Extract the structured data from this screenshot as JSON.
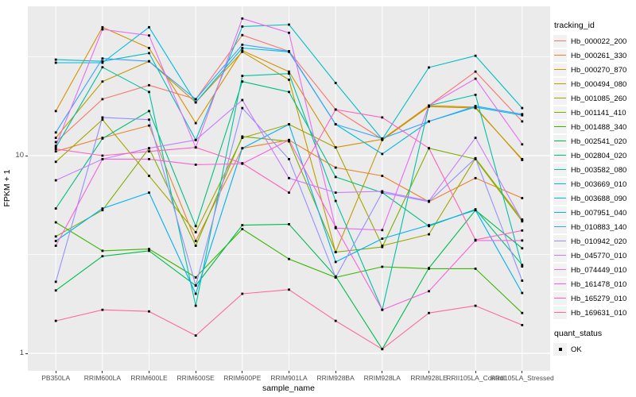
{
  "y_axis": {
    "title": "FPKM + 1",
    "ticks": [
      "10",
      "1"
    ]
  },
  "x_axis": {
    "title": "sample_name",
    "categories": [
      "PB350LA",
      "RRIM600LA",
      "RRIM600LE",
      "RRIM600SE",
      "RRIM600PE",
      "RRIM901LA",
      "RRIM928BA",
      "RRIM928LA",
      "RRIM928LE",
      "RRII105LA_Control",
      "RRII105LA_Stressed"
    ]
  },
  "legend": {
    "tracking_title": "tracking_id",
    "quant_title": "quant_status",
    "quant_label": "OK"
  },
  "chart_data": {
    "type": "line",
    "title": "",
    "xlabel": "sample_name",
    "ylabel": "FPKM + 1",
    "yscale": "log10",
    "ylim": [
      0.82,
      57
    ],
    "yticks": [
      1,
      10
    ],
    "y_major": [
      10,
      1
    ],
    "y_minor": [
      31.623,
      3.1623
    ],
    "grid": true,
    "legend_position": "right",
    "point_marker": "black-square",
    "quant_status": "OK",
    "categories": [
      "PB350LA",
      "RRIM600LA",
      "RRIM600LE",
      "RRIM600SE",
      "RRIM600PE",
      "RRIM901LA",
      "RRIM928BA",
      "RRIM928LA",
      "RRIM928LE",
      "RRII105LA_Control",
      "RRII105LA_Stressed"
    ],
    "series": [
      {
        "name": "Hb_000022_200",
        "color": "#F8766D",
        "values": [
          11.7,
          19.3,
          22.7,
          19.3,
          40.7,
          33.7,
          17.1,
          12.1,
          17.9,
          26.6,
          14.9
        ]
      },
      {
        "name": "Hb_000261_330",
        "color": "#EA8331",
        "values": [
          10.5,
          12.3,
          14.2,
          3.7,
          10.9,
          12.0,
          8.7,
          7.9,
          5.85,
          7.7,
          6.1
        ]
      },
      {
        "name": "Hb_000270_870",
        "color": "#D89000",
        "values": [
          16.8,
          44.6,
          35.0,
          14.6,
          34.0,
          26.6,
          11.0,
          12.1,
          17.9,
          17.6,
          9.5
        ]
      },
      {
        "name": "Hb_000494_080",
        "color": "#C09B00",
        "values": [
          12.3,
          23.7,
          30.0,
          18.6,
          33.5,
          24.2,
          3.25,
          12.0,
          17.7,
          17.4,
          9.6
        ]
      },
      {
        "name": "Hb_001085_260",
        "color": "#A3A500",
        "values": [
          9.3,
          15.2,
          7.9,
          4.1,
          12.3,
          14.4,
          11.0,
          3.5,
          4.0,
          9.7,
          4.75
        ]
      },
      {
        "name": "Hb_001141_410",
        "color": "#7CAE00",
        "values": [
          3.9,
          5.3,
          10.9,
          3.5,
          12.5,
          11.8,
          3.25,
          3.45,
          10.9,
          9.6,
          4.65
        ]
      },
      {
        "name": "Hb_001488_340",
        "color": "#39B600",
        "values": [
          4.6,
          3.3,
          3.37,
          2.42,
          4.25,
          3.0,
          2.42,
          2.74,
          2.68,
          2.68,
          1.6
        ]
      },
      {
        "name": "Hb_002541_020",
        "color": "#00BB4E",
        "values": [
          2.08,
          3.1,
          3.3,
          2.2,
          4.45,
          4.5,
          2.45,
          1.05,
          2.7,
          5.3,
          3.4
        ]
      },
      {
        "name": "Hb_002804_020",
        "color": "#00BF7D",
        "values": [
          5.4,
          12.2,
          16.8,
          4.4,
          23.7,
          21.0,
          7.8,
          6.5,
          4.4,
          5.35,
          2.8
        ]
      },
      {
        "name": "Hb_003582_080",
        "color": "#00C1A3",
        "values": [
          11.0,
          28.0,
          21.0,
          1.74,
          25.3,
          26.0,
          5.9,
          1.66,
          17.9,
          20.3,
          2.75
        ]
      },
      {
        "name": "Hb_003669_010",
        "color": "#00BFC4",
        "values": [
          30.6,
          30.0,
          33.0,
          12.0,
          45.0,
          46.0,
          23.3,
          12.1,
          27.9,
          32.0,
          17.4
        ]
      },
      {
        "name": "Hb_003688_090",
        "color": "#00BAE0",
        "values": [
          29.5,
          29.5,
          44.6,
          18.6,
          35.0,
          33.5,
          14.4,
          10.2,
          14.9,
          17.6,
          16.0
        ]
      },
      {
        "name": "Hb_007951_040",
        "color": "#00B0F6",
        "values": [
          3.7,
          5.4,
          6.5,
          2.0,
          10.9,
          14.4,
          2.9,
          3.8,
          4.45,
          5.3,
          2.02
        ]
      },
      {
        "name": "Hb_010883_140",
        "color": "#35A2FF",
        "values": [
          13.1,
          31.0,
          30.0,
          19.3,
          36.4,
          33.7,
          14.4,
          12.2,
          14.9,
          17.8,
          16.2
        ]
      },
      {
        "name": "Hb_010942_020",
        "color": "#9590FF",
        "values": [
          2.3,
          15.6,
          15.2,
          2.2,
          17.4,
          9.6,
          2.42,
          6.5,
          5.85,
          9.7,
          2.33
        ]
      },
      {
        "name": "Hb_045770_010",
        "color": "#C77CFF",
        "values": [
          7.5,
          9.6,
          10.9,
          12.0,
          19.1,
          7.7,
          6.5,
          6.6,
          5.9,
          12.3,
          4.7
        ]
      },
      {
        "name": "Hb_074449_010",
        "color": "#E76BF3",
        "values": [
          11.2,
          43.5,
          40.5,
          11.0,
          49.4,
          41.8,
          4.3,
          4.2,
          17.9,
          24.5,
          11.4
        ]
      },
      {
        "name": "Hb_161478_010",
        "color": "#FA62DB",
        "values": [
          3.5,
          9.6,
          9.6,
          9.0,
          9.1,
          12.0,
          4.35,
          1.66,
          2.06,
          3.72,
          3.72
        ]
      },
      {
        "name": "Hb_165279_010",
        "color": "#FF62BC",
        "values": [
          10.8,
          10.0,
          10.5,
          11.0,
          9.15,
          6.5,
          17.1,
          15.6,
          10.9,
          3.75,
          4.18
        ]
      },
      {
        "name": "Hb_169631_010",
        "color": "#FF6A98",
        "values": [
          1.46,
          1.66,
          1.63,
          1.23,
          2.0,
          2.1,
          1.46,
          1.05,
          1.6,
          1.74,
          1.39
        ]
      }
    ]
  }
}
